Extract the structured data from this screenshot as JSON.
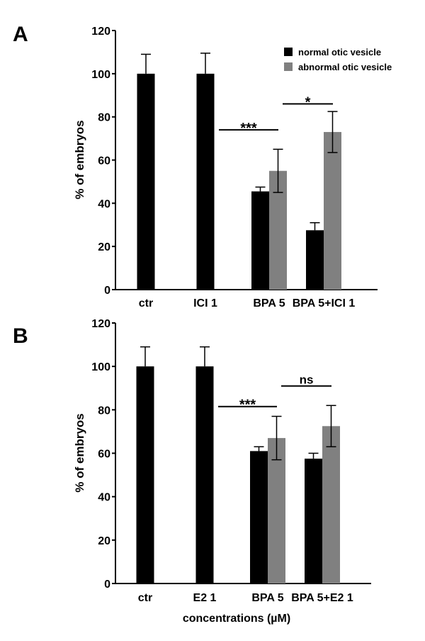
{
  "colors": {
    "normal": "#000000",
    "abnormal": "#808080"
  },
  "legend": {
    "placement": "top-right",
    "items": [
      {
        "label": "normal otic vesicle",
        "color": "#000000"
      },
      {
        "label": "abnormal otic vesicle",
        "color": "#808080"
      }
    ]
  },
  "xlabel_shared": "concentrations (µM)",
  "chart_data": [
    {
      "type": "bar",
      "panel": "A",
      "ylabel": "% of embryos",
      "ylim": [
        0,
        120
      ],
      "yticks": [
        0,
        20,
        40,
        60,
        80,
        100,
        120
      ],
      "categories": [
        "ctr",
        "ICI 1",
        "BPA 5",
        "BPA 5+ICI 1"
      ],
      "series": [
        {
          "name": "normal otic vesicle",
          "values": [
            100,
            100,
            45.5,
            27.5
          ],
          "errors": [
            9,
            9.5,
            2,
            3.5
          ]
        },
        {
          "name": "abnormal otic vesicle",
          "values": [
            null,
            null,
            55,
            73
          ],
          "errors": [
            null,
            null,
            10,
            9.5
          ]
        }
      ],
      "annotations": [
        {
          "text": "***",
          "from": "ICI 1",
          "to": "BPA 5",
          "y": 74
        },
        {
          "text": "*",
          "from": "BPA 5",
          "to": "BPA 5+ICI 1",
          "y": 86
        }
      ]
    },
    {
      "type": "bar",
      "panel": "B",
      "ylabel": "% of embryos",
      "xlabel": "concentrations (µM)",
      "ylim": [
        0,
        120
      ],
      "yticks": [
        0,
        20,
        40,
        60,
        80,
        100,
        120
      ],
      "categories": [
        "ctr",
        "E2 1",
        "BPA 5",
        "BPA 5+E2 1"
      ],
      "series": [
        {
          "name": "normal otic vesicle",
          "values": [
            100,
            100,
            61,
            57.5
          ],
          "errors": [
            9,
            9,
            2,
            2.5
          ]
        },
        {
          "name": "abnormal otic vesicle",
          "values": [
            null,
            null,
            67,
            72.5
          ],
          "errors": [
            null,
            null,
            10,
            9.5
          ]
        }
      ],
      "annotations": [
        {
          "text": "***",
          "from": "E2 1",
          "to": "BPA 5",
          "y": 81.5
        },
        {
          "text": "ns",
          "from": "BPA 5",
          "to": "BPA 5+E2 1",
          "y": 91
        }
      ]
    }
  ]
}
